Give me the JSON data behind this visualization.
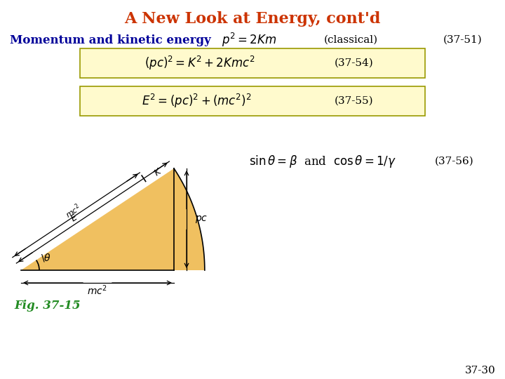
{
  "title": "A New Look at Energy, cont'd",
  "title_color": "#CC3300",
  "subtitle": "Momentum and kinetic energy",
  "subtitle_color": "#000099",
  "background_color": "#ffffff",
  "page_num": "37-30",
  "box_fill": "#FFFACD",
  "box_edge": "#999900",
  "triangle_fill": "#F0C060",
  "triangle_edge": "#000000",
  "fig_label": "Fig. 37-15",
  "fig_label_color": "#228B22",
  "title_fontsize": 16,
  "subtitle_fontsize": 12,
  "eq_fontsize": 13
}
